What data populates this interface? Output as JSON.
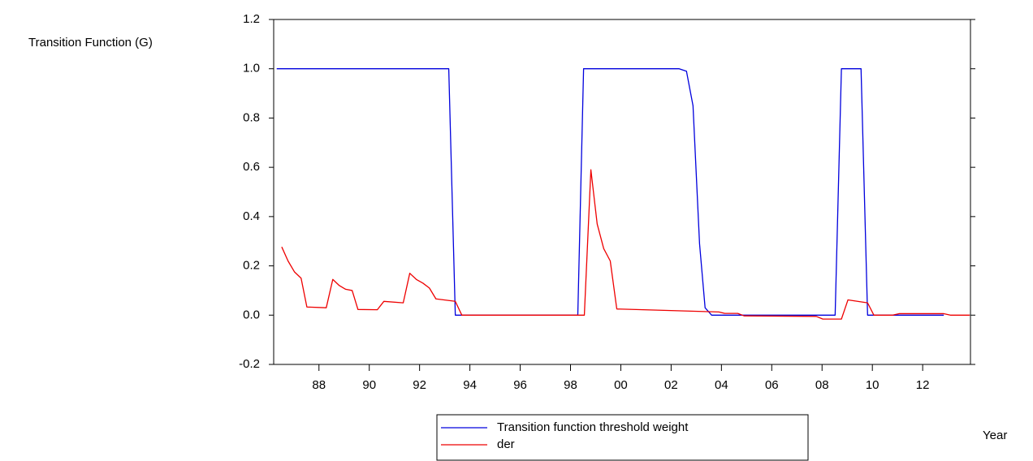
{
  "chart_data": {
    "type": "line",
    "y_label": "Transition Function (G)",
    "x_label": "Year",
    "xlim": [
      1986.2,
      2013.9
    ],
    "xticks": [
      {
        "value": 1988,
        "label": "88"
      },
      {
        "value": 1990,
        "label": "90"
      },
      {
        "value": 1992,
        "label": "92"
      },
      {
        "value": 1994,
        "label": "94"
      },
      {
        "value": 1996,
        "label": "96"
      },
      {
        "value": 1998,
        "label": "98"
      },
      {
        "value": 2000,
        "label": "00"
      },
      {
        "value": 2002,
        "label": "02"
      },
      {
        "value": 2004,
        "label": "04"
      },
      {
        "value": 2006,
        "label": "06"
      },
      {
        "value": 2008,
        "label": "08"
      },
      {
        "value": 2010,
        "label": "10"
      },
      {
        "value": 2012,
        "label": "12"
      }
    ],
    "ylim": [
      -0.2,
      1.2
    ],
    "yticks": [
      -0.2,
      {
        "value": 0,
        "label": "0.0"
      },
      0.2,
      0.4,
      0.6,
      0.8,
      {
        "value": 1,
        "label": "1.0"
      },
      1.2
    ],
    "grid": false,
    "series": [
      {
        "name": "Transition function threshold weight",
        "color": "#0000dd",
        "x": [
          1986.32,
          1993.16,
          1993.42,
          1998.29,
          1998.52,
          2002.32,
          2002.61,
          2002.87,
          2003.13,
          2003.35,
          2003.61,
          2008.52,
          2008.77,
          2009.55,
          2009.81,
          2012.84
        ],
        "values": [
          1,
          1,
          0,
          0,
          1,
          1,
          0.99,
          0.85,
          0.29,
          0.03,
          0,
          0,
          1,
          1,
          0,
          0
        ]
      },
      {
        "name": "der",
        "color": "#ee0000",
        "x": [
          1986.52,
          1986.77,
          1987.03,
          1987.29,
          1987.52,
          1988.29,
          1988.55,
          1988.81,
          1989.06,
          1989.32,
          1989.55,
          1990.32,
          1990.58,
          1991.35,
          1991.61,
          1991.87,
          1992.13,
          1992.39,
          1992.65,
          1993.42,
          1993.68,
          1998.55,
          1998.81,
          1999.06,
          1999.32,
          1999.58,
          1999.84,
          2003.9,
          2004.13,
          2004.65,
          2004.9,
          2007.77,
          2008.03,
          2008.77,
          2009.03,
          2009.81,
          2010.06,
          2010.81,
          2011.06,
          2012.84,
          2013.1,
          2013.87
        ],
        "values": [
          0.277,
          0.22,
          0.175,
          0.15,
          0.033,
          0.03,
          0.145,
          0.12,
          0.105,
          0.1,
          0.023,
          0.022,
          0.056,
          0.05,
          0.17,
          0.145,
          0.13,
          0.11,
          0.066,
          0.056,
          0,
          0,
          0.59,
          0.37,
          0.27,
          0.22,
          0.025,
          0.013,
          0.007,
          0.007,
          -0.003,
          -0.005,
          -0.016,
          -0.016,
          0.062,
          0.05,
          0,
          0,
          0.006,
          0.006,
          0,
          0
        ]
      }
    ],
    "legend": "bottom"
  }
}
